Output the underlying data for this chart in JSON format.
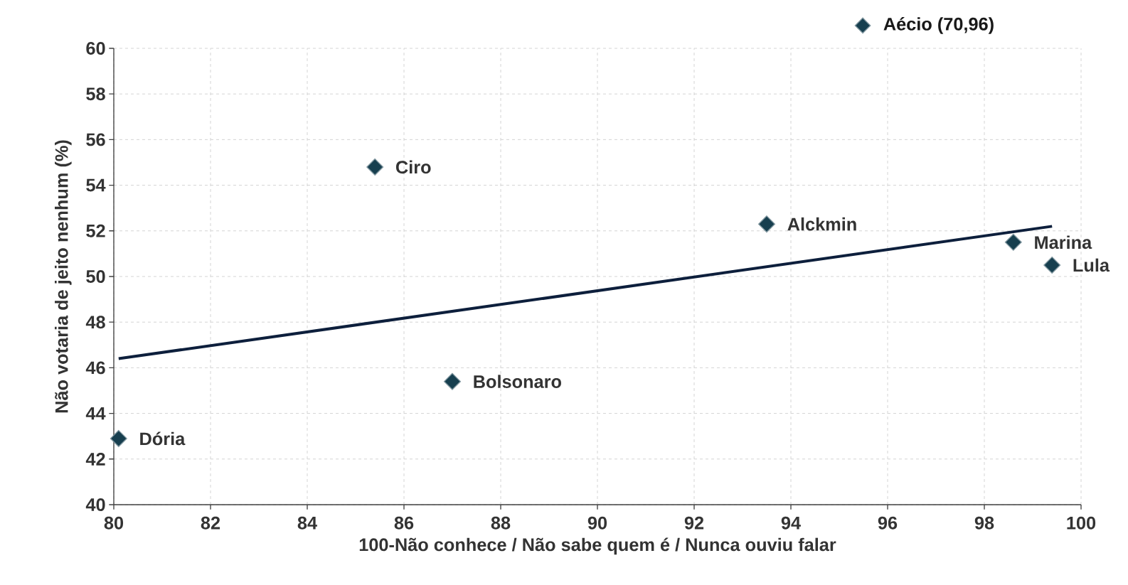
{
  "chart_data": {
    "type": "scatter",
    "xlabel": "100-Não conhece / Não sabe quem é / Nunca ouviu falar",
    "ylabel": "Não votaria de jeito nenhum (%)",
    "series": [
      {
        "color": "#173f4f",
        "marker": "diamond",
        "x": [
          80.1,
          85.4,
          87.0,
          93.5,
          98.6,
          99.4
        ],
        "values": [
          42.9,
          54.8,
          45.4,
          52.3,
          51.5,
          50.5
        ]
      },
      {
        "type": "line",
        "color": "#0d1f3c",
        "x": [
          80.1,
          99.4
        ],
        "values": [
          46.4,
          52.2
        ]
      }
    ],
    "annotations": [
      {
        "text": "Dória",
        "x": 80.1,
        "y": 42.9
      },
      {
        "text": "Ciro",
        "x": 85.4,
        "y": 54.8
      },
      {
        "text": "Bolsonaro",
        "x": 87.0,
        "y": 45.4
      },
      {
        "text": "Alckmin",
        "x": 93.5,
        "y": 52.3
      },
      {
        "text": "Marina",
        "x": 98.6,
        "y": 51.5
      },
      {
        "text": "Lula",
        "x": 99.4,
        "y": 50.5
      },
      "Aécio (70,96)"
    ],
    "xlim": [
      80,
      100
    ],
    "ylim": [
      40,
      60
    ],
    "xticks": [
      80,
      82,
      84,
      86,
      88,
      90,
      92,
      94,
      96,
      98,
      100
    ],
    "yticks": [
      40,
      42,
      44,
      46,
      48,
      50,
      52,
      54,
      56,
      58,
      60
    ],
    "grid": true
  }
}
